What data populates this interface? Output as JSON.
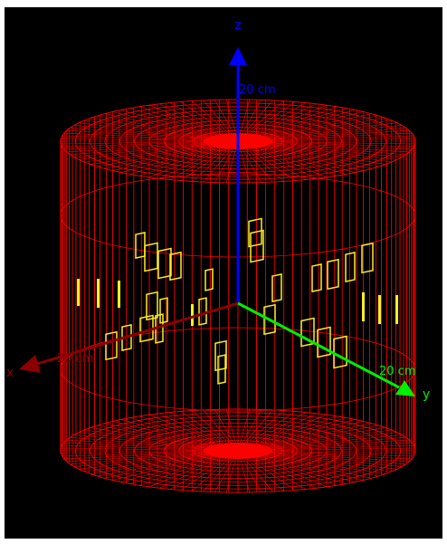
{
  "viewer": {
    "background_color": "#000000",
    "detector_color": "#ff0000",
    "module_color": "#ffee22"
  },
  "axes": {
    "z": {
      "label": "z",
      "scale": "20 cm",
      "color": "#0000ff"
    },
    "x": {
      "label": "x",
      "scale": "20 cm",
      "color": "#8b0000"
    },
    "y": {
      "label": "y",
      "scale": "20 cm",
      "color": "#00ee00"
    }
  }
}
